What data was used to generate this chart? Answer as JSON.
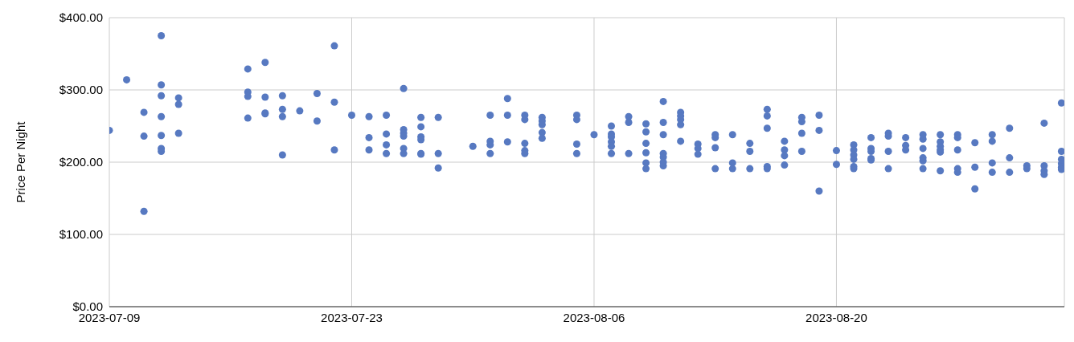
{
  "chart_data": {
    "type": "scatter",
    "ylabel": "Price Per Night",
    "marker": "circle",
    "grid": true,
    "legend": false,
    "xlim": [
      "2023-07-09",
      "2023-09-02T04:00"
    ],
    "xticks": [
      "2023-07-09",
      "2023-07-23",
      "2023-08-06",
      "2023-08-20"
    ],
    "ylim": [
      0,
      400
    ],
    "yticks": [
      {
        "value": 0,
        "label": "$0.00"
      },
      {
        "value": 100,
        "label": "$100.00"
      },
      {
        "value": 200,
        "label": "$200.00"
      },
      {
        "value": 300,
        "label": "$300.00"
      },
      {
        "value": 400,
        "label": "$400.00"
      }
    ],
    "series": [
      {
        "color": "#5779c1",
        "x": [
          "2023-07-09",
          "2023-07-10",
          "2023-07-11",
          "2023-07-11",
          "2023-07-11",
          "2023-07-12",
          "2023-07-12",
          "2023-07-12",
          "2023-07-12",
          "2023-07-12",
          "2023-07-12",
          "2023-07-12",
          "2023-07-13",
          "2023-07-13",
          "2023-07-13",
          "2023-07-17",
          "2023-07-17",
          "2023-07-17",
          "2023-07-17",
          "2023-07-18",
          "2023-07-18",
          "2023-07-18",
          "2023-07-18",
          "2023-07-19",
          "2023-07-19",
          "2023-07-19",
          "2023-07-19",
          "2023-07-20",
          "2023-07-21",
          "2023-07-21",
          "2023-07-22",
          "2023-07-22",
          "2023-07-22",
          "2023-07-23",
          "2023-07-24",
          "2023-07-24",
          "2023-07-24",
          "2023-07-25",
          "2023-07-25",
          "2023-07-25",
          "2023-07-25",
          "2023-07-26",
          "2023-07-26",
          "2023-07-26",
          "2023-07-26",
          "2023-07-26",
          "2023-07-26",
          "2023-07-27",
          "2023-07-27",
          "2023-07-27",
          "2023-07-27",
          "2023-07-27",
          "2023-07-27",
          "2023-07-28",
          "2023-07-28",
          "2023-07-28",
          "2023-07-30",
          "2023-07-31",
          "2023-07-31",
          "2023-07-31",
          "2023-07-31",
          "2023-08-01",
          "2023-08-01",
          "2023-08-01",
          "2023-08-02",
          "2023-08-02",
          "2023-08-02",
          "2023-08-02",
          "2023-08-02",
          "2023-08-03",
          "2023-08-03",
          "2023-08-03",
          "2023-08-03",
          "2023-08-03",
          "2023-08-05",
          "2023-08-05",
          "2023-08-05",
          "2023-08-05",
          "2023-08-06",
          "2023-08-07",
          "2023-08-07",
          "2023-08-07",
          "2023-08-07",
          "2023-08-07",
          "2023-08-07",
          "2023-08-08",
          "2023-08-08",
          "2023-08-08",
          "2023-08-09",
          "2023-08-09",
          "2023-08-09",
          "2023-08-09",
          "2023-08-09",
          "2023-08-09",
          "2023-08-10",
          "2023-08-10",
          "2023-08-10",
          "2023-08-10",
          "2023-08-10",
          "2023-08-10",
          "2023-08-10",
          "2023-08-11",
          "2023-08-11",
          "2023-08-11",
          "2023-08-11",
          "2023-08-11",
          "2023-08-12",
          "2023-08-12",
          "2023-08-12",
          "2023-08-13",
          "2023-08-13",
          "2023-08-13",
          "2023-08-13",
          "2023-08-14",
          "2023-08-14",
          "2023-08-14",
          "2023-08-15",
          "2023-08-15",
          "2023-08-15",
          "2023-08-16",
          "2023-08-16",
          "2023-08-16",
          "2023-08-16",
          "2023-08-16",
          "2023-08-17",
          "2023-08-17",
          "2023-08-17",
          "2023-08-17",
          "2023-08-18",
          "2023-08-18",
          "2023-08-18",
          "2023-08-18",
          "2023-08-19",
          "2023-08-19",
          "2023-08-19",
          "2023-08-20",
          "2023-08-20",
          "2023-08-21",
          "2023-08-21",
          "2023-08-21",
          "2023-08-21",
          "2023-08-21",
          "2023-08-21",
          "2023-08-22",
          "2023-08-22",
          "2023-08-22",
          "2023-08-22",
          "2023-08-22",
          "2023-08-23",
          "2023-08-23",
          "2023-08-23",
          "2023-08-23",
          "2023-08-24",
          "2023-08-24",
          "2023-08-24",
          "2023-08-25",
          "2023-08-25",
          "2023-08-25",
          "2023-08-25",
          "2023-08-25",
          "2023-08-25",
          "2023-08-26",
          "2023-08-26",
          "2023-08-26",
          "2023-08-26",
          "2023-08-26",
          "2023-08-26",
          "2023-08-27",
          "2023-08-27",
          "2023-08-27",
          "2023-08-27",
          "2023-08-27",
          "2023-08-28",
          "2023-08-28",
          "2023-08-28",
          "2023-08-29",
          "2023-08-29",
          "2023-08-29",
          "2023-08-29",
          "2023-08-30",
          "2023-08-30",
          "2023-08-30",
          "2023-08-31",
          "2023-08-31",
          "2023-09-01",
          "2023-09-01",
          "2023-09-01",
          "2023-09-01",
          "2023-09-02",
          "2023-09-02",
          "2023-09-02",
          "2023-09-02",
          "2023-09-02",
          "2023-09-02"
        ],
        "values": [
          244,
          314,
          269,
          236,
          132,
          375,
          307,
          292,
          263,
          237,
          219,
          215,
          289,
          280,
          240,
          329,
          297,
          291,
          261,
          338,
          290,
          268,
          267,
          292,
          273,
          263,
          210,
          271,
          295,
          257,
          361,
          283,
          217,
          265,
          263,
          234,
          217,
          265,
          239,
          224,
          212,
          302,
          245,
          240,
          236,
          219,
          212,
          262,
          249,
          235,
          231,
          212,
          211,
          262,
          212,
          192,
          222,
          265,
          229,
          224,
          212,
          288,
          265,
          228,
          265,
          259,
          226,
          216,
          212,
          262,
          257,
          252,
          241,
          233,
          265,
          259,
          225,
          212,
          238,
          250,
          239,
          235,
          228,
          222,
          212,
          263,
          255,
          212,
          253,
          242,
          226,
          213,
          199,
          191,
          284,
          255,
          238,
          212,
          207,
          200,
          195,
          269,
          264,
          259,
          252,
          229,
          225,
          219,
          211,
          238,
          234,
          220,
          191,
          238,
          199,
          191,
          226,
          215,
          191,
          273,
          264,
          247,
          194,
          191,
          229,
          217,
          209,
          196,
          262,
          256,
          240,
          215,
          265,
          244,
          160,
          216,
          197,
          224,
          217,
          210,
          204,
          194,
          191,
          234,
          219,
          215,
          205,
          203,
          240,
          236,
          215,
          191,
          234,
          223,
          217,
          238,
          232,
          219,
          206,
          202,
          191,
          238,
          228,
          222,
          217,
          214,
          188,
          238,
          234,
          217,
          191,
          186,
          227,
          193,
          163,
          238,
          229,
          199,
          186,
          247,
          206,
          186,
          195,
          191,
          254,
          195,
          188,
          183,
          282,
          215,
          204,
          198,
          193,
          190
        ]
      }
    ]
  }
}
